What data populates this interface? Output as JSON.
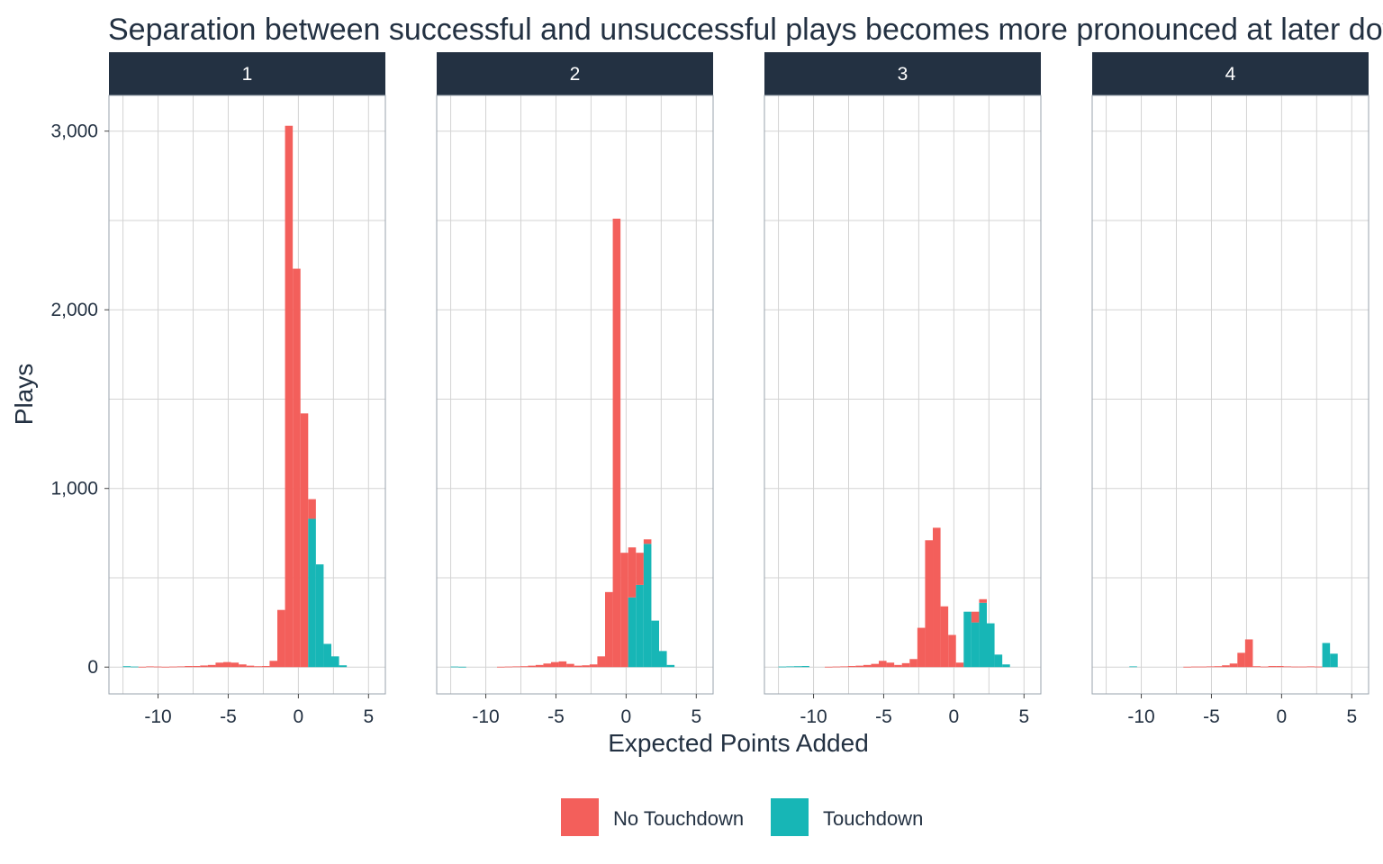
{
  "chart_data": {
    "type": "histogram",
    "title": "Separation between successful and unsuccessful plays becomes more pronounced at later downs",
    "xlabel": "Expected Points Added",
    "ylabel": "Plays",
    "xlim": [
      -13.5,
      6.2
    ],
    "ylim": [
      -150,
      3200
    ],
    "x_ticks": [
      -10,
      -5,
      0,
      5
    ],
    "x_tick_labels": [
      "-10",
      "-5",
      "0",
      "5"
    ],
    "y_ticks": [
      0,
      1000,
      2000,
      3000
    ],
    "y_tick_labels": [
      "0",
      "1,000",
      "2,000",
      "3,000"
    ],
    "bin_width": 0.55,
    "stacked": true,
    "grid": true,
    "legend_position": "bottom",
    "series": [
      {
        "name": "No Touchdown",
        "color": "#f35f5b"
      },
      {
        "name": "Touchdown",
        "color": "#17b6b6"
      }
    ],
    "facets": [
      {
        "label": "1",
        "bins": [
          {
            "x0": -12.5,
            "no_td": 0,
            "td": 5
          },
          {
            "x0": -11.95,
            "no_td": 0,
            "td": 3
          },
          {
            "x0": -11.4,
            "no_td": 2,
            "td": 0
          },
          {
            "x0": -10.85,
            "no_td": 4,
            "td": 0
          },
          {
            "x0": -10.3,
            "no_td": 3,
            "td": 0
          },
          {
            "x0": -9.75,
            "no_td": 2,
            "td": 0
          },
          {
            "x0": -9.2,
            "no_td": 3,
            "td": 0
          },
          {
            "x0": -8.65,
            "no_td": 4,
            "td": 0
          },
          {
            "x0": -8.1,
            "no_td": 6,
            "td": 0
          },
          {
            "x0": -7.55,
            "no_td": 6,
            "td": 0
          },
          {
            "x0": -7.0,
            "no_td": 9,
            "td": 0
          },
          {
            "x0": -6.45,
            "no_td": 12,
            "td": 0
          },
          {
            "x0": -5.9,
            "no_td": 25,
            "td": 0
          },
          {
            "x0": -5.35,
            "no_td": 28,
            "td": 0
          },
          {
            "x0": -4.8,
            "no_td": 25,
            "td": 0
          },
          {
            "x0": -4.25,
            "no_td": 15,
            "td": 0
          },
          {
            "x0": -3.7,
            "no_td": 8,
            "td": 0
          },
          {
            "x0": -3.15,
            "no_td": 5,
            "td": 0
          },
          {
            "x0": -2.6,
            "no_td": 6,
            "td": 0
          },
          {
            "x0": -2.05,
            "no_td": 35,
            "td": 0
          },
          {
            "x0": -1.5,
            "no_td": 320,
            "td": 0
          },
          {
            "x0": -0.95,
            "no_td": 3030,
            "td": 0
          },
          {
            "x0": -0.4,
            "no_td": 2230,
            "td": 0
          },
          {
            "x0": 0.15,
            "no_td": 1420,
            "td": 0
          },
          {
            "x0": 0.7,
            "no_td": 110,
            "td": 830
          },
          {
            "x0": 1.25,
            "no_td": 0,
            "td": 575
          },
          {
            "x0": 1.8,
            "no_td": 0,
            "td": 130
          },
          {
            "x0": 2.35,
            "no_td": 0,
            "td": 60
          },
          {
            "x0": 2.9,
            "no_td": 0,
            "td": 10
          }
        ]
      },
      {
        "label": "2",
        "bins": [
          {
            "x0": -12.5,
            "no_td": 0,
            "td": 3
          },
          {
            "x0": -11.95,
            "no_td": 0,
            "td": 2
          },
          {
            "x0": -9.2,
            "no_td": 2,
            "td": 0
          },
          {
            "x0": -8.65,
            "no_td": 3,
            "td": 0
          },
          {
            "x0": -8.1,
            "no_td": 4,
            "td": 0
          },
          {
            "x0": -7.55,
            "no_td": 5,
            "td": 0
          },
          {
            "x0": -7.0,
            "no_td": 8,
            "td": 0
          },
          {
            "x0": -6.45,
            "no_td": 12,
            "td": 0
          },
          {
            "x0": -5.9,
            "no_td": 20,
            "td": 0
          },
          {
            "x0": -5.35,
            "no_td": 28,
            "td": 0
          },
          {
            "x0": -4.8,
            "no_td": 32,
            "td": 0
          },
          {
            "x0": -4.25,
            "no_td": 18,
            "td": 0
          },
          {
            "x0": -3.7,
            "no_td": 8,
            "td": 0
          },
          {
            "x0": -3.15,
            "no_td": 10,
            "td": 0
          },
          {
            "x0": -2.6,
            "no_td": 15,
            "td": 0
          },
          {
            "x0": -2.05,
            "no_td": 60,
            "td": 0
          },
          {
            "x0": -1.5,
            "no_td": 420,
            "td": 0
          },
          {
            "x0": -0.95,
            "no_td": 2510,
            "td": 0
          },
          {
            "x0": -0.4,
            "no_td": 640,
            "td": 0
          },
          {
            "x0": 0.15,
            "no_td": 280,
            "td": 390
          },
          {
            "x0": 0.7,
            "no_td": 180,
            "td": 460
          },
          {
            "x0": 1.25,
            "no_td": 25,
            "td": 690
          },
          {
            "x0": 1.8,
            "no_td": 0,
            "td": 260
          },
          {
            "x0": 2.35,
            "no_td": 0,
            "td": 90
          },
          {
            "x0": 2.9,
            "no_td": 0,
            "td": 12
          }
        ]
      },
      {
        "label": "3",
        "bins": [
          {
            "x0": -12.5,
            "no_td": 0,
            "td": 3
          },
          {
            "x0": -11.95,
            "no_td": 0,
            "td": 4
          },
          {
            "x0": -11.4,
            "no_td": 0,
            "td": 5
          },
          {
            "x0": -10.85,
            "no_td": 0,
            "td": 6
          },
          {
            "x0": -9.2,
            "no_td": 2,
            "td": 0
          },
          {
            "x0": -8.65,
            "no_td": 3,
            "td": 0
          },
          {
            "x0": -8.1,
            "no_td": 4,
            "td": 0
          },
          {
            "x0": -7.55,
            "no_td": 6,
            "td": 0
          },
          {
            "x0": -7.0,
            "no_td": 8,
            "td": 0
          },
          {
            "x0": -6.45,
            "no_td": 12,
            "td": 0
          },
          {
            "x0": -5.9,
            "no_td": 18,
            "td": 0
          },
          {
            "x0": -5.35,
            "no_td": 35,
            "td": 0
          },
          {
            "x0": -4.8,
            "no_td": 25,
            "td": 0
          },
          {
            "x0": -4.25,
            "no_td": 12,
            "td": 0
          },
          {
            "x0": -3.7,
            "no_td": 22,
            "td": 0
          },
          {
            "x0": -3.15,
            "no_td": 45,
            "td": 0
          },
          {
            "x0": -2.6,
            "no_td": 220,
            "td": 0
          },
          {
            "x0": -2.05,
            "no_td": 710,
            "td": 0
          },
          {
            "x0": -1.5,
            "no_td": 780,
            "td": 0
          },
          {
            "x0": -0.95,
            "no_td": 340,
            "td": 0
          },
          {
            "x0": -0.4,
            "no_td": 180,
            "td": 0
          },
          {
            "x0": 0.15,
            "no_td": 25,
            "td": 0
          },
          {
            "x0": 0.7,
            "no_td": 0,
            "td": 310
          },
          {
            "x0": 1.25,
            "no_td": 60,
            "td": 250
          },
          {
            "x0": 1.8,
            "no_td": 20,
            "td": 360
          },
          {
            "x0": 2.35,
            "no_td": 0,
            "td": 245
          },
          {
            "x0": 2.9,
            "no_td": 0,
            "td": 70
          },
          {
            "x0": 3.45,
            "no_td": 0,
            "td": 15
          }
        ]
      },
      {
        "label": "4",
        "bins": [
          {
            "x0": -10.85,
            "no_td": 0,
            "td": 4
          },
          {
            "x0": -7.0,
            "no_td": 2,
            "td": 0
          },
          {
            "x0": -6.45,
            "no_td": 3,
            "td": 0
          },
          {
            "x0": -5.9,
            "no_td": 3,
            "td": 0
          },
          {
            "x0": -5.35,
            "no_td": 4,
            "td": 0
          },
          {
            "x0": -4.8,
            "no_td": 5,
            "td": 0
          },
          {
            "x0": -4.25,
            "no_td": 10,
            "td": 0
          },
          {
            "x0": -3.7,
            "no_td": 20,
            "td": 0
          },
          {
            "x0": -3.15,
            "no_td": 80,
            "td": 0
          },
          {
            "x0": -2.6,
            "no_td": 155,
            "td": 0
          },
          {
            "x0": -2.05,
            "no_td": 5,
            "td": 0
          },
          {
            "x0": -1.5,
            "no_td": 3,
            "td": 0
          },
          {
            "x0": -0.95,
            "no_td": 6,
            "td": 0
          },
          {
            "x0": -0.4,
            "no_td": 6,
            "td": 0
          },
          {
            "x0": 0.15,
            "no_td": 4,
            "td": 0
          },
          {
            "x0": 0.7,
            "no_td": 3,
            "td": 0
          },
          {
            "x0": 1.25,
            "no_td": 3,
            "td": 0
          },
          {
            "x0": 1.8,
            "no_td": 4,
            "td": 0
          },
          {
            "x0": 2.35,
            "no_td": 3,
            "td": 0
          },
          {
            "x0": 2.9,
            "no_td": 0,
            "td": 135
          },
          {
            "x0": 3.45,
            "no_td": 0,
            "td": 75
          }
        ]
      }
    ]
  },
  "colors": {
    "strip_background": "#233142",
    "grid": "#d3d3d3",
    "panel_border": "#9aa3ad",
    "text": "#233142"
  }
}
